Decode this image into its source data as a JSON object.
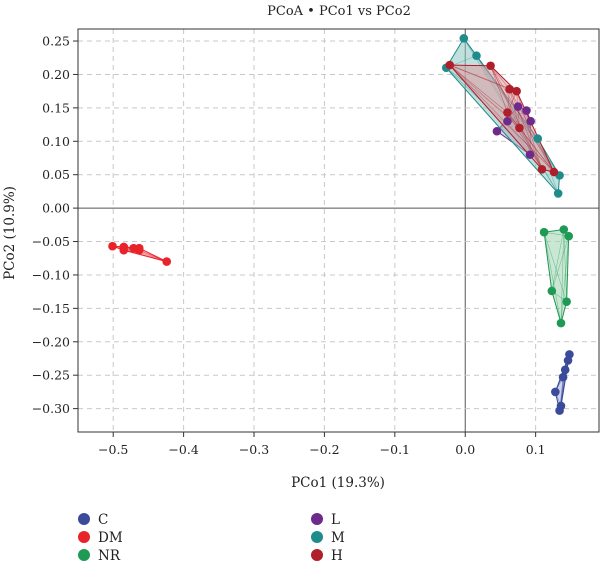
{
  "chart_data": {
    "type": "scatter",
    "title": "PCoA • PCo1 vs PCo2",
    "xlabel": "PCo1 (19.3%)",
    "ylabel": "PCo2 (10.9%)",
    "xlim": [
      -0.55,
      0.19
    ],
    "ylim": [
      -0.335,
      0.268
    ],
    "xticks": [
      -0.5,
      -0.4,
      -0.3,
      -0.2,
      -0.1,
      0.0,
      0.1
    ],
    "xtick_labels": [
      "−0.5",
      "−0.4",
      "−0.3",
      "−0.2",
      "−0.1",
      "0.0",
      "0.1"
    ],
    "yticks": [
      0.25,
      0.2,
      0.15,
      0.1,
      0.05,
      0.0,
      -0.05,
      -0.1,
      -0.15,
      -0.2,
      -0.25,
      -0.3
    ],
    "ytick_labels": [
      "0.25",
      "0.20",
      "0.15",
      "0.10",
      "0.05",
      "0.00",
      "−0.05",
      "−0.10",
      "−0.15",
      "−0.20",
      "−0.25",
      "−0.30"
    ],
    "grid": true,
    "legend_position": "bottom",
    "series": [
      {
        "name": "C",
        "color": "#3a4b9a",
        "hull_fill": "#a9b1d8",
        "points": [
          [
            0.148,
            -0.219
          ],
          [
            0.146,
            -0.228
          ],
          [
            0.142,
            -0.242
          ],
          [
            0.139,
            -0.253
          ],
          [
            0.128,
            -0.275
          ],
          [
            0.136,
            -0.296
          ],
          [
            0.134,
            -0.303
          ]
        ]
      },
      {
        "name": "DM",
        "color": "#e8232a",
        "hull_fill": "#f2a3a5",
        "points": [
          [
            -0.501,
            -0.057
          ],
          [
            -0.485,
            -0.058
          ],
          [
            -0.485,
            -0.063
          ],
          [
            -0.471,
            -0.06
          ],
          [
            -0.463,
            -0.06
          ],
          [
            -0.463,
            -0.063
          ],
          [
            -0.424,
            -0.08
          ]
        ]
      },
      {
        "name": "NR",
        "color": "#1f9a55",
        "hull_fill": "#9fd3b0",
        "points": [
          [
            0.112,
            -0.036
          ],
          [
            0.14,
            -0.032
          ],
          [
            0.147,
            -0.042
          ],
          [
            0.123,
            -0.124
          ],
          [
            0.144,
            -0.14
          ],
          [
            0.136,
            -0.172
          ]
        ]
      },
      {
        "name": "L",
        "color": "#6d2a8a",
        "hull_fill": "#c7a4d4",
        "points": [
          [
            0.06,
            0.13
          ],
          [
            0.075,
            0.152
          ],
          [
            0.087,
            0.146
          ],
          [
            0.093,
            0.13
          ],
          [
            0.045,
            0.115
          ],
          [
            0.092,
            0.08
          ]
        ]
      },
      {
        "name": "M",
        "color": "#1f8c8c",
        "hull_fill": "#8cc7c2",
        "points": [
          [
            -0.002,
            0.254
          ],
          [
            0.016,
            0.228
          ],
          [
            -0.027,
            0.21
          ],
          [
            0.103,
            0.104
          ],
          [
            0.134,
            0.049
          ],
          [
            0.132,
            0.022
          ]
        ]
      },
      {
        "name": "H",
        "color": "#b01e2a",
        "hull_fill": "#dc9aa0",
        "points": [
          [
            -0.022,
            0.214
          ],
          [
            0.036,
            0.213
          ],
          [
            0.063,
            0.178
          ],
          [
            0.073,
            0.175
          ],
          [
            0.06,
            0.143
          ],
          [
            0.077,
            0.12
          ],
          [
            0.109,
            0.058
          ],
          [
            0.126,
            0.054
          ]
        ]
      }
    ]
  }
}
